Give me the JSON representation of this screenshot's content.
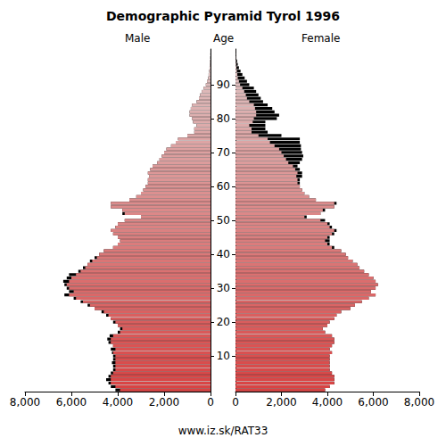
{
  "chart_data": {
    "type": "bar",
    "orientation": "horizontal",
    "title": "Demographic Pyramid Tyrol 1996",
    "y_label": "Age",
    "annotations": [
      "www.iz.sk/RAT33"
    ],
    "categories": [
      null,
      null,
      null,
      null,
      null,
      null,
      null,
      null,
      null,
      null,
      "10",
      null,
      null,
      null,
      null,
      null,
      null,
      null,
      null,
      null,
      "20",
      null,
      null,
      null,
      null,
      null,
      null,
      null,
      null,
      null,
      "30",
      null,
      null,
      null,
      null,
      null,
      null,
      null,
      null,
      null,
      "40",
      null,
      null,
      null,
      null,
      null,
      null,
      null,
      null,
      null,
      "50",
      null,
      null,
      null,
      null,
      null,
      null,
      null,
      null,
      null,
      "60",
      null,
      null,
      null,
      null,
      null,
      null,
      null,
      null,
      null,
      "70",
      null,
      null,
      null,
      null,
      null,
      null,
      null,
      null,
      null,
      "80",
      null,
      null,
      null,
      null,
      null,
      null,
      null,
      null,
      null,
      "90",
      null,
      null,
      null,
      null,
      null,
      null,
      null,
      null,
      null,
      null
    ],
    "series": [
      {
        "name": "Male",
        "values": [
          4100,
          4300,
          4400,
          4500,
          4400,
          4300,
          4200,
          4200,
          4250,
          4200,
          4200,
          4250,
          4300,
          4200,
          4400,
          4450,
          4350,
          4000,
          3900,
          4000,
          4200,
          4300,
          4500,
          4700,
          5000,
          5300,
          5600,
          5900,
          6300,
          6100,
          6200,
          6300,
          6350,
          6200,
          6100,
          5700,
          5500,
          5300,
          5200,
          5000,
          4800,
          4600,
          4200,
          4000,
          3900,
          4000,
          4200,
          4300,
          4100,
          4000,
          3700,
          3000,
          3800,
          3800,
          4300,
          4300,
          3500,
          3200,
          3000,
          2900,
          2800,
          2700,
          2700,
          2650,
          2700,
          2600,
          2500,
          2300,
          2200,
          2100,
          2000,
          1900,
          1700,
          1500,
          1400,
          1000,
          700,
          700,
          600,
          750,
          800,
          900,
          900,
          850,
          800,
          600,
          500,
          450,
          380,
          300,
          200,
          150,
          100,
          80,
          60,
          40,
          25,
          15,
          10,
          5,
          3
        ]
      },
      {
        "name": "Female",
        "values": [
          3900,
          4100,
          4300,
          4300,
          4300,
          4200,
          4100,
          4100,
          4100,
          4100,
          4100,
          4200,
          4100,
          4200,
          4300,
          4300,
          4200,
          3900,
          3800,
          4000,
          4100,
          4300,
          4400,
          4600,
          5000,
          5200,
          5500,
          5800,
          6100,
          5900,
          6100,
          6200,
          6100,
          6000,
          5800,
          5600,
          5400,
          5300,
          5100,
          4900,
          4800,
          4600,
          4300,
          4100,
          4100,
          4100,
          4300,
          4400,
          4200,
          4100,
          3900,
          3100,
          3700,
          3900,
          4300,
          4400,
          3500,
          3200,
          3000,
          2900,
          2800,
          2800,
          2800,
          2900,
          2900,
          2800,
          2700,
          2800,
          2900,
          2950,
          2900,
          2850,
          2850,
          2800,
          2800,
          2000,
          1400,
          1300,
          1300,
          1300,
          1800,
          1900,
          1700,
          1600,
          1400,
          1200,
          1100,
          1000,
          900,
          800,
          600,
          500,
          400,
          300,
          220,
          150,
          100,
          70,
          40,
          25,
          15
        ]
      }
    ],
    "xlim": [
      0,
      8000
    ],
    "xticks": [
      0,
      2000,
      4000,
      6000,
      8000
    ]
  }
}
